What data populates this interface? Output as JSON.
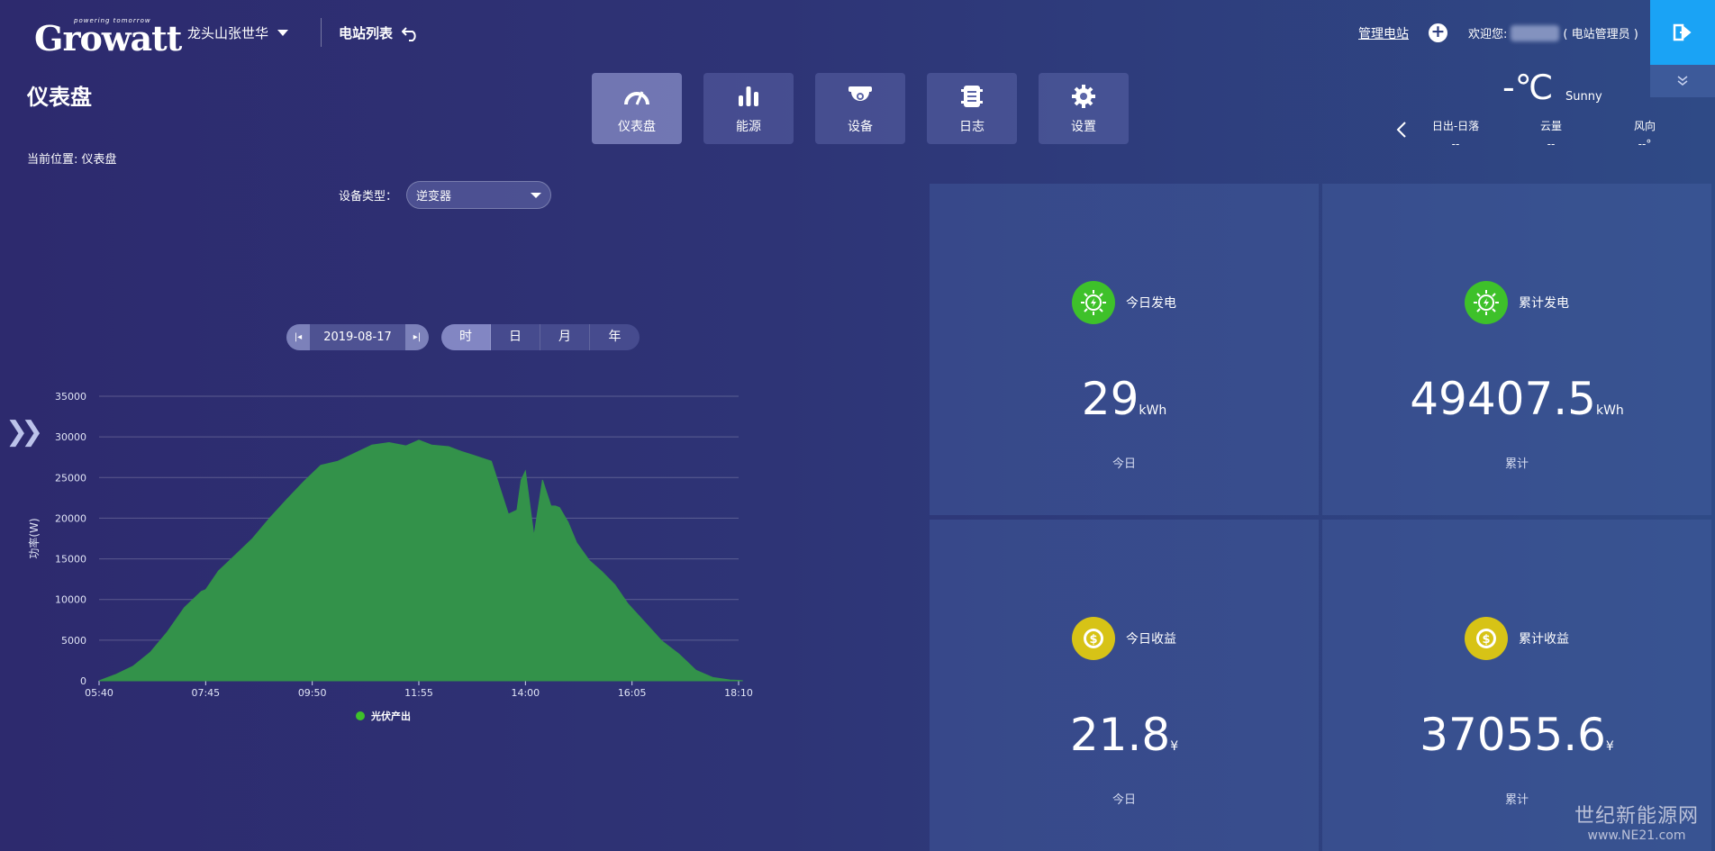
{
  "header": {
    "logo_text": "Growatt",
    "logo_tagline": "powering tomorrow",
    "station_name": "龙头山张世华",
    "plant_list_label": "电站列表",
    "manage_label": "管理电站",
    "welcome_prefix": "欢迎您:",
    "welcome_role": "( 电站管理员 )"
  },
  "page": {
    "title": "仪表盘",
    "breadcrumb": "当前位置: 仪表盘"
  },
  "tabs": [
    {
      "label": "仪表盘",
      "icon": "dashboard-icon",
      "active": true
    },
    {
      "label": "能源",
      "icon": "energy-chart-icon",
      "active": false
    },
    {
      "label": "设备",
      "icon": "device-camera-icon",
      "active": false
    },
    {
      "label": "日志",
      "icon": "log-icon",
      "active": false
    },
    {
      "label": "设置",
      "icon": "gear-icon",
      "active": false
    }
  ],
  "weather": {
    "temp": "-℃",
    "condition": "Sunny",
    "cols": [
      {
        "label": "日出-日落",
        "value": "--"
      },
      {
        "label": "云量",
        "value": "--"
      },
      {
        "label": "风向",
        "value": "--°"
      }
    ]
  },
  "device": {
    "label": "设备类型：",
    "selected": "逆变器"
  },
  "date": {
    "value": "2019-08-17",
    "periods": [
      "时",
      "日",
      "月",
      "年"
    ],
    "active_period": "时"
  },
  "cards": [
    {
      "title": "今日发电",
      "value": "29",
      "unit": "kWh",
      "sub": "今日",
      "icon": "sun-bolt-icon",
      "color": "#3ec12a"
    },
    {
      "title": "累计发电",
      "value": "49407.5",
      "unit": "kWh",
      "sub": "累计",
      "icon": "sun-bolt-icon",
      "color": "#3ec12a"
    },
    {
      "title": "今日收益",
      "value": "21.8",
      "unit": "¥",
      "sub": "今日",
      "icon": "coin-icon",
      "color": "#d7c316"
    },
    {
      "title": "累计收益",
      "value": "37055.6",
      "unit": "¥",
      "sub": "累计",
      "icon": "coin-icon",
      "color": "#d7c316"
    }
  ],
  "watermark": {
    "line1": "世纪新能源网",
    "line2": "www.NE21.com"
  },
  "chart_data": {
    "type": "area",
    "ylabel": "功率(W)",
    "ylim": [
      0,
      35000
    ],
    "yticks": [
      0,
      5000,
      10000,
      15000,
      20000,
      25000,
      30000,
      35000
    ],
    "xticks": [
      "05:40",
      "07:45",
      "09:50",
      "11:55",
      "14:00",
      "16:05",
      "18:10"
    ],
    "grid": true,
    "legend_position": "bottom",
    "series": [
      {
        "name": "光伏产出",
        "color": "#33924a",
        "x": [
          "05:40",
          "06:00",
          "06:20",
          "06:40",
          "07:00",
          "07:20",
          "07:40",
          "07:45",
          "08:00",
          "08:20",
          "08:40",
          "09:00",
          "09:20",
          "09:40",
          "10:00",
          "10:20",
          "10:40",
          "11:00",
          "11:20",
          "11:40",
          "11:55",
          "12:10",
          "12:30",
          "12:45",
          "13:00",
          "13:20",
          "13:40",
          "13:50",
          "13:55",
          "14:00",
          "14:10",
          "14:20",
          "14:30",
          "14:35",
          "14:40",
          "14:50",
          "15:00",
          "15:15",
          "15:30",
          "15:45",
          "16:00",
          "16:20",
          "16:40",
          "17:00",
          "17:20",
          "17:40",
          "18:00",
          "18:10",
          "18:15"
        ],
        "values": [
          0,
          800,
          1800,
          3500,
          6000,
          9000,
          11000,
          11200,
          13500,
          15500,
          17500,
          20000,
          22300,
          24500,
          26500,
          27000,
          28000,
          29000,
          29300,
          28900,
          29600,
          29000,
          28800,
          28200,
          27700,
          27000,
          20500,
          21000,
          24700,
          25800,
          17800,
          24700,
          21500,
          21500,
          21300,
          19500,
          17000,
          14800,
          13400,
          11800,
          9500,
          7200,
          4900,
          3300,
          1300,
          400,
          100,
          50,
          0
        ]
      }
    ]
  }
}
